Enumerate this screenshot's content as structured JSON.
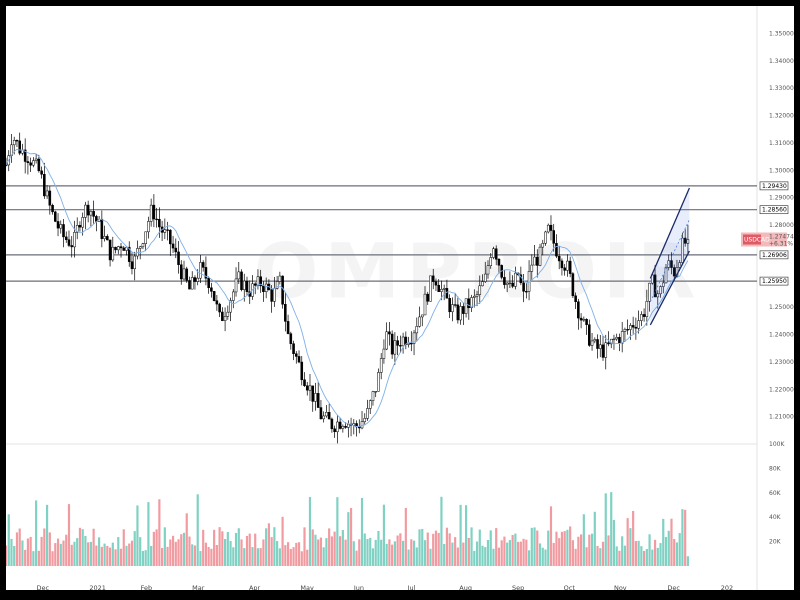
{
  "chart_data": {
    "type": "candlestick",
    "symbol_badge": "USDCAD",
    "last_price": "1.27474",
    "change_pct": "+6.31%",
    "watermark": "OMPROIR",
    "price_axis": {
      "range": [
        1.2,
        1.36
      ],
      "ticks": [
        "1.35000",
        "1.34000",
        "1.33000",
        "1.32000",
        "1.31000",
        "1.30000",
        "1.29000",
        "1.28000",
        "1.25000",
        "1.24000",
        "1.23000",
        "1.22000",
        "1.21000"
      ]
    },
    "levels": [
      {
        "label": "1.29430",
        "value": 1.2943
      },
      {
        "label": "1.28560",
        "value": 1.2856
      },
      {
        "label": "1.26906",
        "value": 1.2691
      },
      {
        "label": "1.25950",
        "value": 1.2595
      }
    ],
    "channel": {
      "lower": [
        [
          0.858,
          1.2435
        ],
        [
          0.91,
          1.2705
        ]
      ],
      "upper": [
        [
          0.858,
          1.2605
        ],
        [
          0.91,
          1.2935
        ]
      ]
    },
    "volume_axis": {
      "range": [
        0,
        100000
      ],
      "ticks": [
        "100K",
        "80K",
        "60K",
        "40K",
        "20K"
      ]
    },
    "x_labels": [
      {
        "label": "Dec",
        "pos": 0.049
      },
      {
        "label": "2021",
        "pos": 0.122
      },
      {
        "label": "Feb",
        "pos": 0.187
      },
      {
        "label": "Mar",
        "pos": 0.256
      },
      {
        "label": "Apr",
        "pos": 0.331
      },
      {
        "label": "May",
        "pos": 0.401
      },
      {
        "label": "Jun",
        "pos": 0.47
      },
      {
        "label": "Jul",
        "pos": 0.54
      },
      {
        "label": "Aug",
        "pos": 0.612
      },
      {
        "label": "Sep",
        "pos": 0.682
      },
      {
        "label": "Oct",
        "pos": 0.75
      },
      {
        "label": "Nov",
        "pos": 0.818
      },
      {
        "label": "Dec",
        "pos": 0.889
      },
      {
        "label": "202",
        "pos": 0.96
      }
    ],
    "anchors": [
      [
        0.0,
        1.302
      ],
      [
        0.008,
        1.313
      ],
      [
        0.018,
        1.308
      ],
      [
        0.03,
        1.305
      ],
      [
        0.045,
        1.299
      ],
      [
        0.06,
        1.285
      ],
      [
        0.075,
        1.276
      ],
      [
        0.09,
        1.273
      ],
      [
        0.1,
        1.284
      ],
      [
        0.11,
        1.287
      ],
      [
        0.125,
        1.279
      ],
      [
        0.14,
        1.269
      ],
      [
        0.155,
        1.274
      ],
      [
        0.17,
        1.266
      ],
      [
        0.185,
        1.278
      ],
      [
        0.195,
        1.286
      ],
      [
        0.205,
        1.279
      ],
      [
        0.22,
        1.273
      ],
      [
        0.235,
        1.262
      ],
      [
        0.245,
        1.256
      ],
      [
        0.258,
        1.264
      ],
      [
        0.272,
        1.259
      ],
      [
        0.285,
        1.245
      ],
      [
        0.295,
        1.251
      ],
      [
        0.31,
        1.26
      ],
      [
        0.325,
        1.256
      ],
      [
        0.34,
        1.259
      ],
      [
        0.355,
        1.254
      ],
      [
        0.365,
        1.259
      ],
      [
        0.375,
        1.24
      ],
      [
        0.39,
        1.229
      ],
      [
        0.405,
        1.22
      ],
      [
        0.42,
        1.21
      ],
      [
        0.435,
        1.207
      ],
      [
        0.45,
        1.209
      ],
      [
        0.465,
        1.206
      ],
      [
        0.48,
        1.21
      ],
      [
        0.495,
        1.223
      ],
      [
        0.505,
        1.241
      ],
      [
        0.515,
        1.234
      ],
      [
        0.525,
        1.238
      ],
      [
        0.54,
        1.24
      ],
      [
        0.555,
        1.25
      ],
      [
        0.57,
        1.262
      ],
      [
        0.585,
        1.253
      ],
      [
        0.6,
        1.247
      ],
      [
        0.612,
        1.25
      ],
      [
        0.625,
        1.253
      ],
      [
        0.638,
        1.26
      ],
      [
        0.648,
        1.274
      ],
      [
        0.66,
        1.263
      ],
      [
        0.672,
        1.256
      ],
      [
        0.682,
        1.262
      ],
      [
        0.69,
        1.253
      ],
      [
        0.7,
        1.266
      ],
      [
        0.712,
        1.269
      ],
      [
        0.722,
        1.278
      ],
      [
        0.735,
        1.27
      ],
      [
        0.748,
        1.264
      ],
      [
        0.76,
        1.251
      ],
      [
        0.772,
        1.241
      ],
      [
        0.785,
        1.235
      ],
      [
        0.798,
        1.234
      ],
      [
        0.81,
        1.238
      ],
      [
        0.822,
        1.24
      ],
      [
        0.835,
        1.244
      ],
      [
        0.848,
        1.247
      ],
      [
        0.86,
        1.259
      ],
      [
        0.87,
        1.254
      ],
      [
        0.88,
        1.266
      ],
      [
        0.89,
        1.263
      ],
      [
        0.9,
        1.272
      ],
      [
        0.908,
        1.2747
      ]
    ]
  }
}
